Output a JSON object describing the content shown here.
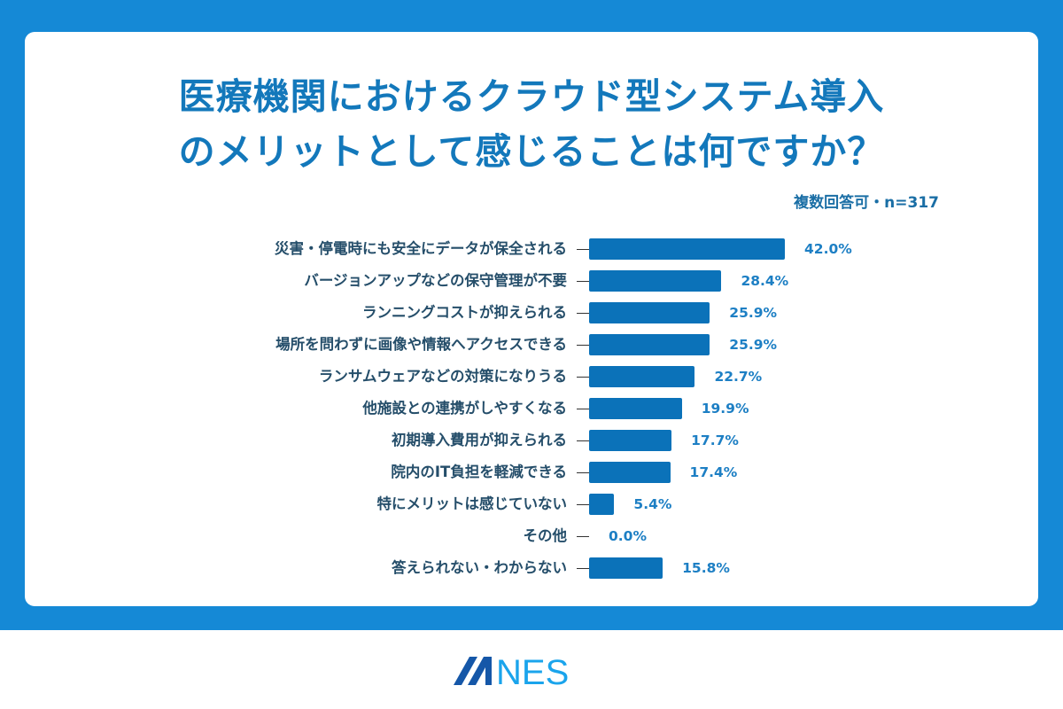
{
  "header": {
    "title_line1": "医療機関におけるクラウド型システム導入",
    "title_line2": "のメリットとして感じることは何ですか？",
    "note": "複数回答可・n=317"
  },
  "colors": {
    "frame": "#1589d6",
    "title": "#1378bb",
    "bar": "#0b72b9",
    "value_label": "#1d7fc4",
    "category_label": "#254e6a",
    "logo_dark": "#1557a8",
    "logo_light": "#1aa4ec"
  },
  "chart_data": {
    "type": "bar",
    "orientation": "horizontal",
    "title": "医療機関におけるクラウド型システム導入のメリットとして感じることは何ですか？",
    "subtitle": "複数回答可・n=317",
    "xlabel": "",
    "ylabel": "",
    "unit": "%",
    "xlim": [
      0,
      42
    ],
    "grid": false,
    "legend": null,
    "categories": [
      "災害・停電時にも安全にデータが保全される",
      "バージョンアップなどの保守管理が不要",
      "ランニングコストが抑えられる",
      "場所を問わずに画像や情報へアクセスできる",
      "ランサムウェアなどの対策になりうる",
      "他施設との連携がしやすくなる",
      "初期導入費用が抑えられる",
      "院内のIT負担を軽減できる",
      "特にメリットは感じていない",
      "その他",
      "答えられない・わからない"
    ],
    "values": [
      42.0,
      28.4,
      25.9,
      25.9,
      22.7,
      19.9,
      17.7,
      17.4,
      5.4,
      0.0,
      15.8
    ],
    "value_labels": [
      "42.0%",
      "28.4%",
      "25.9%",
      "25.9%",
      "22.7%",
      "19.9%",
      "17.7%",
      "17.4%",
      "5.4%",
      "0.0%",
      "15.8%"
    ]
  },
  "footer": {
    "logo_text": "MNES"
  }
}
